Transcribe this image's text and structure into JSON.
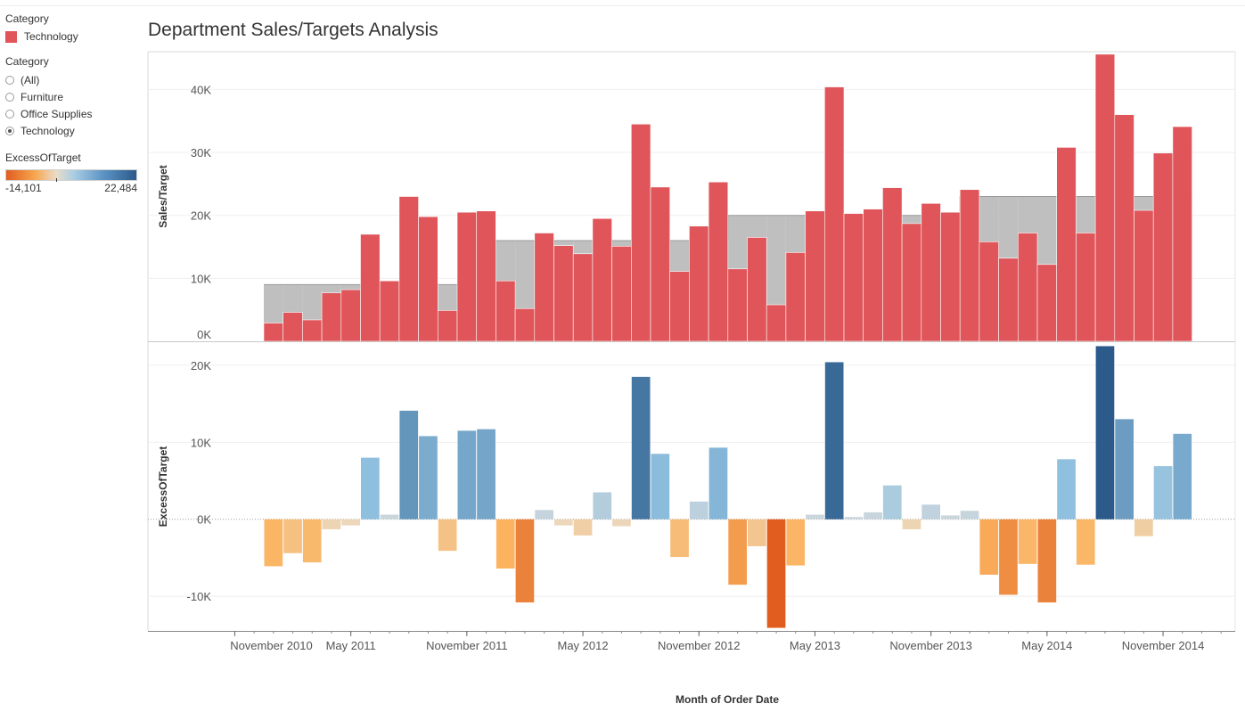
{
  "sidebar": {
    "color_legend": {
      "title": "Category",
      "items": [
        {
          "label": "Technology",
          "color": "#e0555a"
        }
      ]
    },
    "filter": {
      "title": "Category",
      "options": [
        {
          "label": "(All)",
          "checked": false
        },
        {
          "label": "Furniture",
          "checked": false
        },
        {
          "label": "Office Supplies",
          "checked": false
        },
        {
          "label": "Technology",
          "checked": true
        }
      ]
    },
    "gradient_legend": {
      "title": "ExcessOfTarget",
      "min_label": "-14,101",
      "max_label": "22,484"
    }
  },
  "colors": {
    "sales": "#e0555a",
    "target": "#bfbfbf",
    "negative_max": "#e05d1f",
    "positive_max": "#2b5a8b"
  },
  "chart_data": {
    "type": "bar",
    "title": "Department Sales/Targets Analysis",
    "xlabel": "Month of Order Date",
    "x": [
      "2011-01",
      "2011-02",
      "2011-03",
      "2011-04",
      "2011-05",
      "2011-06",
      "2011-07",
      "2011-08",
      "2011-09",
      "2011-10",
      "2011-11",
      "2011-12",
      "2012-01",
      "2012-02",
      "2012-03",
      "2012-04",
      "2012-05",
      "2012-06",
      "2012-07",
      "2012-08",
      "2012-09",
      "2012-10",
      "2012-11",
      "2012-12",
      "2013-01",
      "2013-02",
      "2013-03",
      "2013-04",
      "2013-05",
      "2013-06",
      "2013-07",
      "2013-08",
      "2013-09",
      "2013-10",
      "2013-11",
      "2013-12",
      "2014-01",
      "2014-02",
      "2014-03",
      "2014-04",
      "2014-05",
      "2014-06",
      "2014-07",
      "2014-08",
      "2014-09",
      "2014-10",
      "2014-11",
      "2014-12"
    ],
    "x_tick_labels": [
      "November 2010",
      "May 2011",
      "November 2011",
      "May 2012",
      "November 2012",
      "May 2013",
      "November 2013",
      "May 2014",
      "November 2014"
    ],
    "panels": [
      {
        "ylabel": "Sales/Target",
        "y_ticks": [
          "0K",
          "10K",
          "20K",
          "30K",
          "40K"
        ],
        "ylim": [
          0,
          46000
        ],
        "series": [
          {
            "values": [
              2900,
              4600,
              3400,
              7700,
              8200,
              17000,
              9600,
              23000,
              19800,
              4900,
              20500,
              20700,
              9600,
              5200,
              17200,
              15200,
              13900,
              19500,
              15100,
              34500,
              24500,
              11100,
              18300,
              25300,
              11500,
              16500,
              5800,
              14100,
              20700,
              40400,
              20300,
              21000,
              24400,
              18700,
              21900,
              20500,
              24100,
              15800,
              13200,
              17200,
              12200,
              30800,
              17200,
              45600,
              36000,
              20800,
              29900,
              34100
            ]
          },
          {
            "values": [
              9000,
              9000,
              9000,
              9000,
              9000,
              9000,
              9000,
              9000,
              9000,
              9000,
              9000,
              9000,
              16000,
              16000,
              16000,
              16000,
              16000,
              16000,
              16000,
              16000,
              16000,
              16000,
              16000,
              16000,
              20000,
              20000,
              20000,
              20000,
              20000,
              20000,
              20000,
              20000,
              20000,
              20000,
              20000,
              20000,
              23000,
              23000,
              23000,
              23000,
              23000,
              23000,
              23000,
              23000,
              23000,
              23000,
              23000,
              23000
            ]
          }
        ]
      },
      {
        "ylabel": "ExcessOfTarget",
        "y_ticks": [
          "-10K",
          "0K",
          "10K",
          "20K"
        ],
        "ylim": [
          -14500,
          23000
        ],
        "series": [
          {
            "values": [
              -6100,
              -4400,
              -5600,
              -1300,
              -800,
              8000,
              600,
              14100,
              10800,
              -4100,
              11500,
              11700,
              -6400,
              -10800,
              1200,
              -800,
              -2100,
              3500,
              -900,
              18500,
              8500,
              -4900,
              2300,
              9300,
              -8500,
              -3500,
              -14101,
              -6000,
              600,
              20400,
              300,
              900,
              4400,
              -1300,
              1900,
              500,
              1100,
              -7200,
              -9800,
              -5800,
              -10800,
              7800,
              -5900,
              22484,
              13000,
              -2200,
              6900,
              11100
            ]
          }
        ]
      }
    ]
  }
}
